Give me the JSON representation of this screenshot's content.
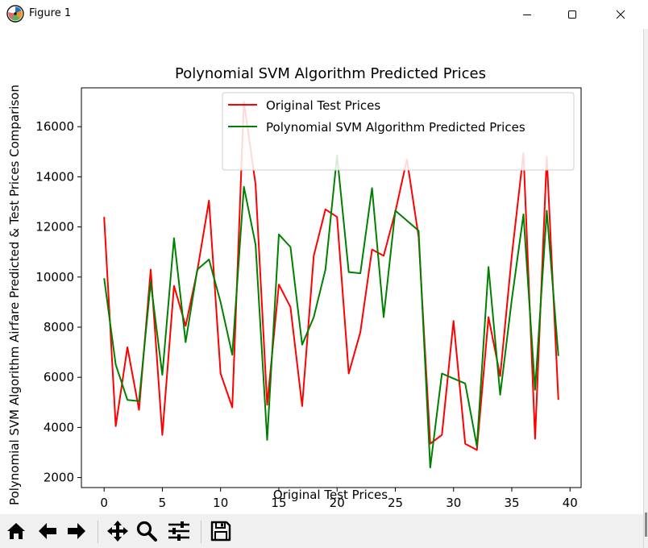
{
  "window": {
    "title": "Figure 1",
    "icon": "matplotlib-logo-icon",
    "controls": [
      "minimize-icon",
      "maximize-icon",
      "close-icon"
    ]
  },
  "toolbar": {
    "buttons": [
      {
        "name": "home-button",
        "icon": "home-icon"
      },
      {
        "name": "back-button",
        "icon": "arrow-left-icon"
      },
      {
        "name": "forward-button",
        "icon": "arrow-right-icon"
      },
      {
        "name": "pan-button",
        "icon": "move-arrows-icon"
      },
      {
        "name": "zoom-button",
        "icon": "magnifier-icon"
      },
      {
        "name": "configure-subplots-button",
        "icon": "sliders-icon"
      },
      {
        "name": "save-button",
        "icon": "floppy-disk-icon"
      }
    ]
  },
  "chart_data": {
    "type": "line",
    "title": "Polynomial SVM Algorithm Predicted Prices",
    "xlabel": "Original Test Prices",
    "ylabel": "Polynomial SVM Algorithm Airfare Predicted & Test Prices Comparison",
    "xlim": [
      -1.95,
      40.95
    ],
    "ylim": [
      1600,
      17550
    ],
    "xticks": [
      0,
      5,
      10,
      15,
      20,
      25,
      30,
      35,
      40
    ],
    "yticks": [
      2000,
      4000,
      6000,
      8000,
      10000,
      12000,
      14000,
      16000
    ],
    "legend_position": "top-right",
    "x": [
      0,
      1,
      2,
      3,
      4,
      5,
      6,
      7,
      8,
      9,
      10,
      11,
      12,
      13,
      14,
      15,
      16,
      17,
      18,
      19,
      20,
      21,
      22,
      23,
      24,
      25,
      26,
      27,
      28,
      29,
      30,
      31,
      32,
      33,
      34,
      35,
      36,
      37,
      38,
      39
    ],
    "series": [
      {
        "name": "Original Test Prices",
        "color": "#ff0000",
        "values": [
          12400,
          4050,
          7200,
          4700,
          10300,
          3700,
          9650,
          8050,
          10250,
          13050,
          6150,
          4800,
          17000,
          13700,
          4900,
          9700,
          8800,
          4850,
          10850,
          12700,
          12400,
          6150,
          7800,
          11100,
          10850,
          12600,
          14700,
          11600,
          3350,
          3700,
          8250,
          3350,
          3100,
          8400,
          6050,
          10850,
          14950,
          3550,
          14800,
          5100
        ]
      },
      {
        "name": "Polynomial SVM Algorithm Predicted Prices",
        "color": "#008000",
        "values": [
          9950,
          6500,
          5100,
          5050,
          9800,
          6100,
          11550,
          7400,
          10300,
          10700,
          9000,
          6900,
          13600,
          11300,
          3500,
          11700,
          11200,
          7300,
          8400,
          10300,
          14850,
          10200,
          10150,
          13550,
          8400,
          12650,
          12250,
          11850,
          2400,
          6150,
          5950,
          5750,
          3250,
          10400,
          5300,
          9100,
          12500,
          5500,
          12650,
          6850
        ]
      }
    ]
  }
}
